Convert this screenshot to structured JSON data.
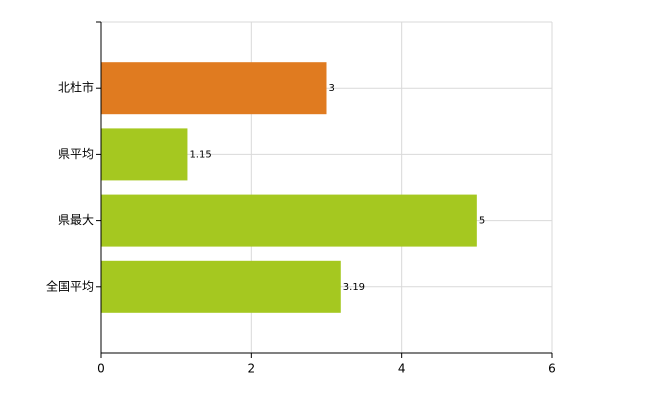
{
  "chart_data": {
    "type": "bar",
    "orientation": "horizontal",
    "categories": [
      "北杜市",
      "県平均",
      "県最大",
      "全国平均"
    ],
    "values": [
      3,
      1.15,
      5,
      3.19
    ],
    "colors": [
      "#e07b20",
      "#a5c820",
      "#a5c820",
      "#a5c820"
    ],
    "xlim": [
      0,
      6
    ],
    "xticks": [
      0,
      2,
      4,
      6
    ],
    "grid": true
  }
}
